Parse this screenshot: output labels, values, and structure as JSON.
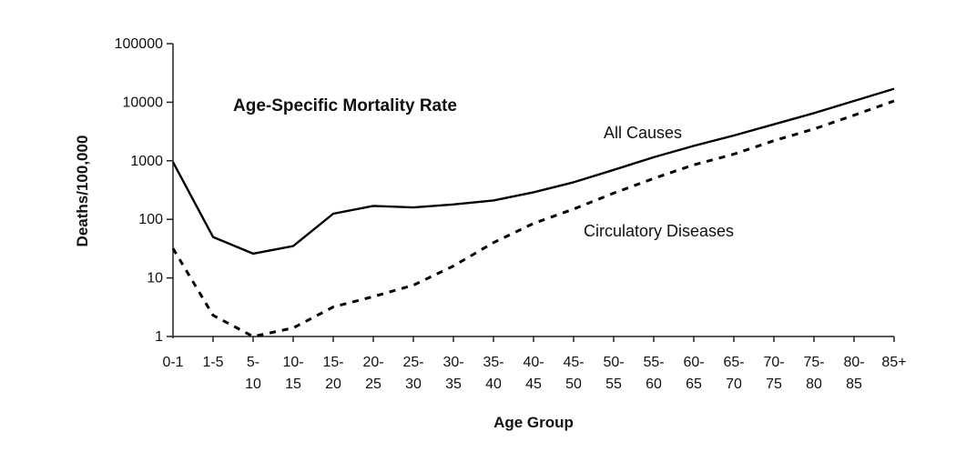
{
  "chart_data": {
    "type": "line",
    "title": "Age-Specific Mortality Rate",
    "xlabel": "Age Group",
    "ylabel": "Deaths/100,000",
    "y_scale": "log",
    "ylim": [
      1,
      100000
    ],
    "y_ticks": [
      "1",
      "10",
      "100",
      "1000",
      "10000",
      "100000"
    ],
    "grid": false,
    "categories": [
      "0-1",
      "1-5",
      "5-10",
      "10-15",
      "15-20",
      "20-25",
      "25-30",
      "30-35",
      "35-40",
      "40-45",
      "45-50",
      "50-55",
      "55-60",
      "60-65",
      "65-70",
      "70-75",
      "75-80",
      "80-85",
      "85+"
    ],
    "x_tick_lines": [
      [
        "0-1"
      ],
      [
        "1-5"
      ],
      [
        "5-",
        "10"
      ],
      [
        "10-",
        "15"
      ],
      [
        "15-",
        "20"
      ],
      [
        "20-",
        "25"
      ],
      [
        "25-",
        "30"
      ],
      [
        "30-",
        "35"
      ],
      [
        "35-",
        "40"
      ],
      [
        "40-",
        "45"
      ],
      [
        "45-",
        "50"
      ],
      [
        "50-",
        "55"
      ],
      [
        "55-",
        "60"
      ],
      [
        "60-",
        "65"
      ],
      [
        "65-",
        "70"
      ],
      [
        "70-",
        "75"
      ],
      [
        "75-",
        "80"
      ],
      [
        "80-",
        "85"
      ],
      [
        "85+"
      ]
    ],
    "series": [
      {
        "name": "All Causes",
        "style": "solid",
        "color": "#000000",
        "values": [
          950,
          50,
          26,
          35,
          125,
          170,
          160,
          180,
          210,
          290,
          430,
          700,
          1150,
          1800,
          2700,
          4200,
          6500,
          10500,
          17000
        ]
      },
      {
        "name": "Circulatory Diseases",
        "style": "dashed",
        "color": "#000000",
        "values": [
          32,
          2.3,
          1.0,
          1.4,
          3.2,
          4.8,
          7.5,
          16,
          40,
          85,
          150,
          280,
          500,
          850,
          1300,
          2200,
          3500,
          6000,
          10500
        ]
      }
    ]
  }
}
